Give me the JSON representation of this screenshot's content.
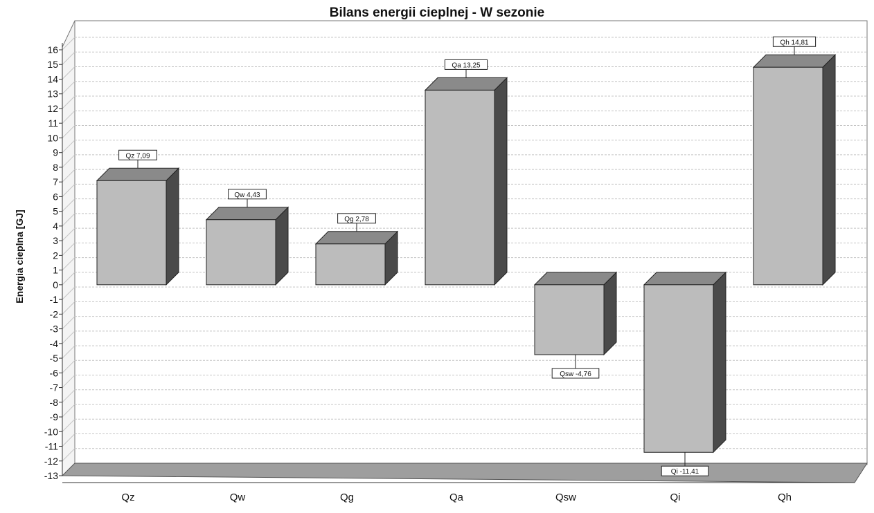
{
  "chart_data": {
    "type": "bar",
    "title": "Bilans energii cieplnej - W sezonie",
    "xlabel": "",
    "ylabel": "Energia cieplna [GJ]",
    "ylim": [
      -13,
      16
    ],
    "yticks": [
      "16",
      "15",
      "14",
      "13",
      "12",
      "11",
      "10",
      "9",
      "8",
      "7",
      "6",
      "5",
      "4",
      "3",
      "2",
      "1",
      "0",
      "-1",
      "-2",
      "-3",
      "-4",
      "-5",
      "-6",
      "-7",
      "-8",
      "-9",
      "-10",
      "-11",
      "-12",
      "-13"
    ],
    "categories": [
      "Qz",
      "Qw",
      "Qg",
      "Qa",
      "Qsw",
      "Qi",
      "Qh"
    ],
    "values": [
      7.09,
      4.43,
      2.78,
      13.25,
      -4.76,
      -11.41,
      14.81
    ],
    "data_labels": [
      "Qz 7,09",
      "Qw 4,43",
      "Qg 2,78",
      "Qa 13,25",
      "Qsw -4,76",
      "Qi -11,41",
      "Qh 14,81"
    ],
    "grid": true,
    "legend": "none",
    "colors": {
      "bar_front": "#bcbcbc",
      "bar_top": "#8a8a8a",
      "bar_side": "#4a4a4a",
      "floor": "#9e9e9e",
      "grid": "#c4c4c4"
    }
  }
}
